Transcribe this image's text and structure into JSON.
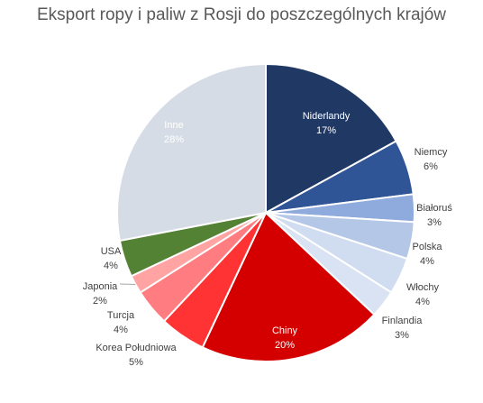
{
  "chart_data": {
    "type": "pie",
    "title": "Eksport ropy i paliw z Rosji do poszczególnych krajów",
    "slices": [
      {
        "name": "Niderlandy",
        "pct": "17%",
        "value": 17,
        "color": "#203864",
        "label_color": "#ffffff"
      },
      {
        "name": "Niemcy",
        "pct": "6%",
        "value": 6,
        "color": "#2f5597",
        "label_color": "#404040"
      },
      {
        "name": "Białoruś",
        "pct": "3%",
        "value": 3,
        "color": "#8faadc",
        "label_color": "#404040"
      },
      {
        "name": "Polska",
        "pct": "4%",
        "value": 4,
        "color": "#b4c7e7",
        "label_color": "#404040"
      },
      {
        "name": "Włochy",
        "pct": "4%",
        "value": 4,
        "color": "#d0dcf0",
        "label_color": "#404040"
      },
      {
        "name": "Finlandia",
        "pct": "3%",
        "value": 3,
        "color": "#dae3f3",
        "label_color": "#404040"
      },
      {
        "name": "Chiny",
        "pct": "20%",
        "value": 20,
        "color": "#d40000",
        "label_color": "#ffffff"
      },
      {
        "name": "Korea Południowa",
        "pct": "5%",
        "value": 5,
        "color": "#ff3333",
        "label_color": "#404040"
      },
      {
        "name": "Turcja",
        "pct": "4%",
        "value": 4,
        "color": "#ff7c80",
        "label_color": "#404040"
      },
      {
        "name": "Japonia",
        "pct": "2%",
        "value": 2,
        "color": "#ffa3a3",
        "label_color": "#404040"
      },
      {
        "name": "USA",
        "pct": "4%",
        "value": 4,
        "color": "#548235",
        "label_color": "#404040"
      },
      {
        "name": "Inne",
        "pct": "28%",
        "value": 28,
        "color": "#d6dce5",
        "label_color": "#ffffff"
      }
    ]
  }
}
